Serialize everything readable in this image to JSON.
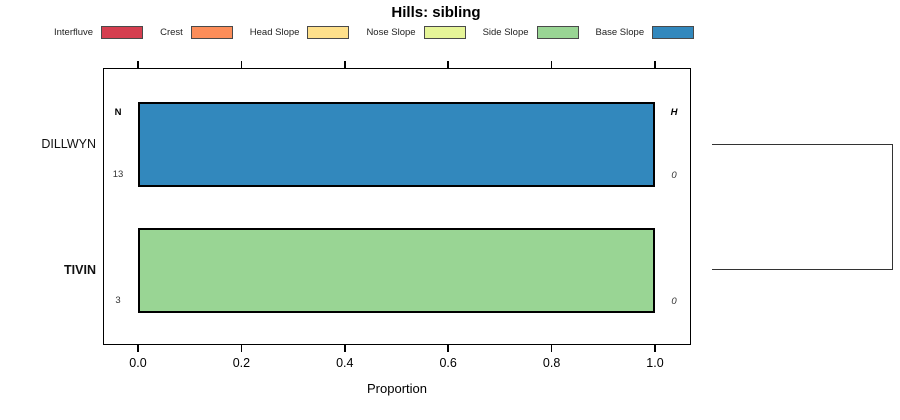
{
  "title": "Hills: sibling",
  "legend": {
    "items": [
      {
        "label": "Interfluve",
        "color": "#d53e4f"
      },
      {
        "label": "Crest",
        "color": "#fc8d59"
      },
      {
        "label": "Head Slope",
        "color": "#fee08b"
      },
      {
        "label": "Nose Slope",
        "color": "#e6f598"
      },
      {
        "label": "Side Slope",
        "color": "#99d594"
      },
      {
        "label": "Base Slope",
        "color": "#3288bd"
      }
    ]
  },
  "columns": {
    "n_header": "N",
    "h_header": "H"
  },
  "rows": [
    {
      "label": "DILLWYN",
      "bold": false,
      "n": "13",
      "h": "0",
      "segment": "Base Slope",
      "color": "#3288bd",
      "proportion": 1.0
    },
    {
      "label": "TIVIN",
      "bold": true,
      "n": "3",
      "h": "0",
      "segment": "Side Slope",
      "color": "#99d594",
      "proportion": 1.0
    }
  ],
  "x_axis": {
    "ticks": [
      "0.0",
      "0.2",
      "0.4",
      "0.6",
      "0.8",
      "1.0"
    ],
    "label": "Proportion"
  },
  "chart_data": {
    "type": "bar",
    "orientation": "horizontal",
    "stacked": true,
    "title": "Hills: sibling",
    "xlabel": "Proportion",
    "xlim": [
      0,
      1
    ],
    "x_ticks": [
      0.0,
      0.2,
      0.4,
      0.6,
      0.8,
      1.0
    ],
    "categories": [
      "DILLWYN",
      "TIVIN"
    ],
    "legend_position": "top",
    "series": [
      {
        "name": "Interfluve",
        "color": "#d53e4f",
        "values": [
          0,
          0
        ]
      },
      {
        "name": "Crest",
        "color": "#fc8d59",
        "values": [
          0,
          0
        ]
      },
      {
        "name": "Head Slope",
        "color": "#fee08b",
        "values": [
          0,
          0
        ]
      },
      {
        "name": "Nose Slope",
        "color": "#e6f598",
        "values": [
          0,
          0
        ]
      },
      {
        "name": "Side Slope",
        "color": "#99d594",
        "values": [
          0,
          1.0
        ]
      },
      {
        "name": "Base Slope",
        "color": "#3288bd",
        "values": [
          1.0,
          0
        ]
      }
    ],
    "annotations": {
      "N_column": {
        "header": "N",
        "values": [
          13,
          3
        ]
      },
      "H_column": {
        "header": "H",
        "values": [
          0,
          0
        ]
      },
      "right_margin": "two-leaf dendrogram bracket joining DILLWYN and TIVIN"
    }
  }
}
